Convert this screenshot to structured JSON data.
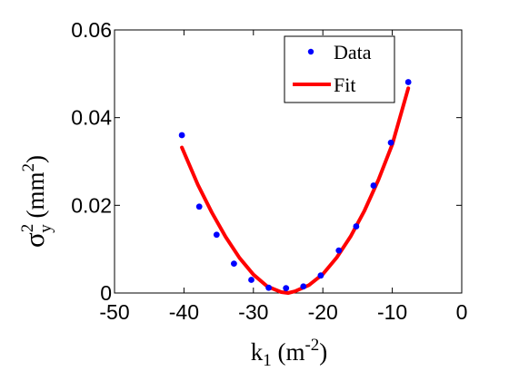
{
  "chart_data": {
    "type": "scatter",
    "xlabel": {
      "base": "k",
      "sub": "1",
      "unit_open": " (m",
      "unit_sup": "-2",
      "unit_close": ")"
    },
    "ylabel": {
      "sigma": "σ",
      "sup": "2",
      "sub": "y",
      "unit_open": " (mm",
      "unit_sup": "2",
      "unit_close": ")"
    },
    "xlim": [
      -50,
      0
    ],
    "ylim": [
      0,
      0.06
    ],
    "xticks": [
      -50,
      -40,
      -30,
      -20,
      -10,
      0
    ],
    "xtick_labels": [
      "-50",
      "-40",
      "-30",
      "-20",
      "-10",
      "0"
    ],
    "yticks": [
      0,
      0.02,
      0.04,
      0.06
    ],
    "ytick_labels": [
      "0",
      "0.02",
      "0.04",
      "0.06"
    ],
    "grid": false,
    "legend_position": "top-right",
    "series": [
      {
        "name": "Data",
        "kind": "points",
        "color": "#0000ff",
        "x": [
          -40.3,
          -37.8,
          -35.3,
          -32.8,
          -30.3,
          -27.8,
          -25.3,
          -22.8,
          -20.3,
          -17.7,
          -15.2,
          -12.7,
          -10.2,
          -7.7
        ],
        "y": [
          0.036,
          0.0197,
          0.0133,
          0.0067,
          0.003,
          0.0012,
          0.0011,
          0.0015,
          0.004,
          0.0097,
          0.0152,
          0.0245,
          0.0343,
          0.0481
        ]
      },
      {
        "name": "Fit",
        "kind": "line",
        "color": "#ff0000",
        "x": [
          -40.3,
          -38,
          -36,
          -34,
          -32,
          -30,
          -28,
          -26,
          -25,
          -24,
          -22,
          -20,
          -18,
          -16,
          -14,
          -12,
          -10,
          -7.7
        ],
        "y": [
          0.0332,
          0.0247,
          0.0184,
          0.0128,
          0.008,
          0.0042,
          0.0015,
          0.0002,
          0.0,
          0.0004,
          0.0018,
          0.0043,
          0.0081,
          0.0129,
          0.0188,
          0.0258,
          0.0339,
          0.0467
        ]
      }
    ]
  }
}
